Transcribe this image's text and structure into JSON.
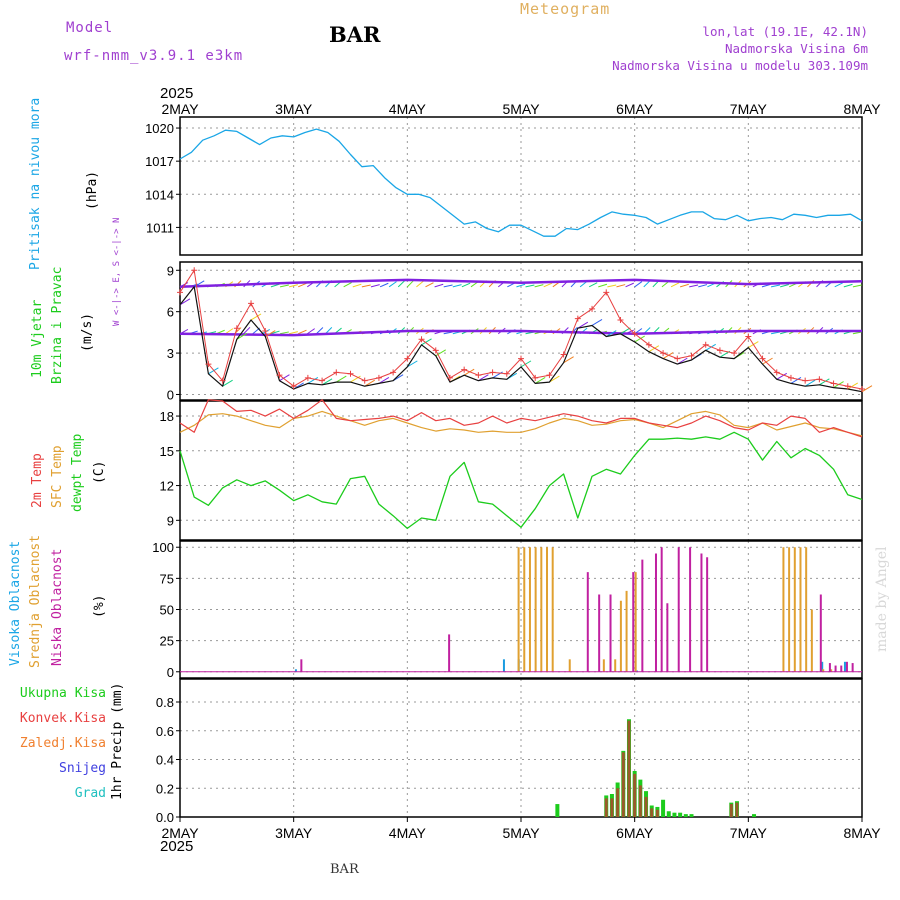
{
  "header": {
    "model_label": "Model",
    "model_name": "wrf-nmm_v3.9.1  e3km",
    "station": "BAR",
    "app_title": "Meteogram",
    "coords": "lon,lat (19.1E, 42.1N)",
    "elevation": "Nadmorska Visina 6m",
    "model_elevation": "Nadmorska Visina u modelu 303.109m",
    "watermark": "made by Angel",
    "footer_station": "BAR"
  },
  "colors": {
    "pressure": "#1aa6e6",
    "wind_speed": "#111111",
    "gust": "#e84040",
    "temp2m": "#e84040",
    "sfc_temp": "#e0a030",
    "dewpt": "#1ccc1c",
    "high_cloud": "#1a9ce0",
    "mid_cloud": "#e0a030",
    "low_cloud": "#c020a0",
    "total_precip": "#1ccc1c",
    "conv_precip": "#e84040"
  },
  "chart_data": [
    {
      "type": "line",
      "id": "pressure",
      "ylabel_parts": [
        "Pritisak na nivou mora",
        "(hPa)"
      ],
      "ylim": [
        1008.5,
        1021
      ],
      "yticks": [
        1011,
        1014,
        1017,
        1020
      ],
      "x_unit": "days since 2MAY 00UTC",
      "series": [
        {
          "name": "Pritisak na nivou mora",
          "x": [
            0,
            0.1,
            0.2,
            0.3,
            0.4,
            0.5,
            0.6,
            0.7,
            0.8,
            0.9,
            1.0,
            1.1,
            1.2,
            1.3,
            1.4,
            1.5,
            1.6,
            1.7,
            1.8,
            1.9,
            2.0,
            2.1,
            2.2,
            2.3,
            2.4,
            2.5,
            2.6,
            2.7,
            2.8,
            2.9,
            3.0,
            3.1,
            3.2,
            3.3,
            3.4,
            3.5,
            3.6,
            3.7,
            3.8,
            3.9,
            4.0,
            4.1,
            4.2,
            4.3,
            4.4,
            4.5,
            4.6,
            4.7,
            4.8,
            4.9,
            5.0,
            5.1,
            5.2,
            5.3,
            5.4,
            5.5,
            5.6,
            5.7,
            5.8,
            5.9,
            6.0
          ],
          "values": [
            1017.2,
            1017.8,
            1018.9,
            1019.3,
            1019.8,
            1019.7,
            1019.1,
            1018.5,
            1019.1,
            1019.3,
            1019.2,
            1019.6,
            1019.9,
            1019.6,
            1018.8,
            1017.6,
            1016.5,
            1016.6,
            1015.5,
            1014.6,
            1014.0,
            1014.0,
            1013.7,
            1012.9,
            1012.1,
            1011.3,
            1011.5,
            1010.9,
            1010.6,
            1011.2,
            1011.2,
            1010.7,
            1010.2,
            1010.2,
            1010.9,
            1010.8,
            1011.3,
            1011.9,
            1012.4,
            1012.2,
            1012.1,
            1011.9,
            1011.3,
            1011.7,
            1012.1,
            1012.4,
            1012.4,
            1011.8,
            1011.7,
            1012.1,
            1011.6,
            1011.8,
            1011.9,
            1011.7,
            1012.2,
            1012.1,
            1011.9,
            1012.1,
            1012.1,
            1012.2,
            1011.6
          ]
        }
      ]
    },
    {
      "type": "line",
      "id": "wind",
      "ylabel_parts": [
        "10m Vjetar",
        "Brzina i Pravac",
        "(m/s)"
      ],
      "legend_compass": "W <-|-> E, S <-|-> N",
      "ylim": [
        -0.4,
        9.6
      ],
      "yticks": [
        0,
        3,
        6,
        9
      ],
      "series": [
        {
          "name": "wind speed",
          "x": [
            0,
            0.125,
            0.25,
            0.375,
            0.5,
            0.625,
            0.75,
            0.875,
            1.0,
            1.125,
            1.25,
            1.375,
            1.5,
            1.625,
            1.75,
            1.875,
            2.0,
            2.125,
            2.25,
            2.375,
            2.5,
            2.625,
            2.75,
            2.875,
            3.0,
            3.125,
            3.25,
            3.375,
            3.5,
            3.625,
            3.75,
            3.875,
            4.0,
            4.125,
            4.25,
            4.375,
            4.5,
            4.625,
            4.75,
            4.875,
            5.0,
            5.125,
            5.25,
            5.375,
            5.5,
            5.625,
            5.75,
            5.875,
            6.0
          ],
          "values": [
            6.5,
            7.8,
            1.5,
            0.6,
            4.0,
            5.4,
            4.2,
            1.0,
            0.4,
            0.8,
            0.7,
            0.9,
            0.9,
            0.6,
            0.8,
            1.0,
            2.0,
            3.6,
            2.8,
            0.9,
            1.4,
            1.0,
            1.2,
            1.1,
            2.0,
            0.8,
            0.9,
            2.3,
            4.8,
            5.0,
            4.2,
            4.4,
            3.8,
            3.1,
            2.6,
            2.2,
            2.5,
            3.2,
            2.7,
            2.6,
            3.4,
            2.2,
            1.1,
            0.8,
            0.6,
            0.7,
            0.5,
            0.4,
            0.2
          ]
        },
        {
          "name": "gust",
          "x": [
            0,
            0.125,
            0.25,
            0.375,
            0.5,
            0.625,
            0.75,
            0.875,
            1.0,
            1.125,
            1.25,
            1.375,
            1.5,
            1.625,
            1.75,
            1.875,
            2.0,
            2.125,
            2.25,
            2.375,
            2.5,
            2.625,
            2.75,
            2.875,
            3.0,
            3.125,
            3.25,
            3.375,
            3.5,
            3.625,
            3.75,
            3.875,
            4.0,
            4.125,
            4.25,
            4.375,
            4.5,
            4.625,
            4.75,
            4.875,
            5.0,
            5.125,
            5.25,
            5.375,
            5.5,
            5.625,
            5.75,
            5.875,
            6.0
          ],
          "values": [
            7.4,
            9.0,
            2.2,
            1.0,
            4.8,
            6.6,
            4.6,
            1.4,
            0.6,
            1.2,
            1.0,
            1.6,
            1.5,
            1.0,
            1.2,
            1.6,
            2.6,
            4.0,
            3.2,
            1.2,
            1.8,
            1.4,
            1.6,
            1.5,
            2.6,
            1.2,
            1.4,
            2.9,
            5.5,
            6.2,
            7.4,
            5.4,
            4.4,
            3.6,
            3.0,
            2.6,
            2.8,
            3.6,
            3.2,
            3.0,
            4.2,
            2.6,
            1.6,
            1.2,
            1.0,
            1.1,
            0.8,
            0.6,
            0.4
          ]
        },
        {
          "name": "upper wind level 1",
          "x": [
            0,
            1,
            2,
            3,
            4,
            5,
            6
          ],
          "values": [
            4.4,
            4.3,
            4.6,
            4.6,
            4.4,
            4.6,
            4.6
          ]
        },
        {
          "name": "upper wind level 2",
          "x": [
            0,
            1,
            2,
            3,
            4,
            5,
            6
          ],
          "values": [
            7.8,
            8.1,
            8.3,
            8.1,
            8.3,
            8.0,
            8.2
          ]
        }
      ]
    },
    {
      "type": "line",
      "id": "temperature",
      "ylabel_parts": [
        "2m Temp",
        "SFC Temp",
        "dewpt Temp",
        "(C)"
      ],
      "ylim": [
        7.3,
        19.3
      ],
      "yticks": [
        9,
        12,
        15,
        18
      ],
      "series": [
        {
          "name": "2m Temp",
          "x": [
            0,
            0.125,
            0.25,
            0.375,
            0.5,
            0.625,
            0.75,
            0.875,
            1.0,
            1.125,
            1.25,
            1.375,
            1.5,
            1.625,
            1.75,
            1.875,
            2.0,
            2.125,
            2.25,
            2.375,
            2.5,
            2.625,
            2.75,
            2.875,
            3.0,
            3.125,
            3.25,
            3.375,
            3.5,
            3.625,
            3.75,
            3.875,
            4.0,
            4.125,
            4.25,
            4.375,
            4.5,
            4.625,
            4.75,
            4.875,
            5.0,
            5.125,
            5.25,
            5.375,
            5.5,
            5.625,
            5.75,
            5.875,
            6.0
          ],
          "values": [
            17.4,
            16.6,
            19.4,
            19.3,
            18.4,
            18.5,
            18.0,
            18.6,
            17.8,
            18.5,
            19.4,
            17.8,
            17.6,
            17.7,
            17.8,
            18.0,
            17.6,
            18.3,
            17.6,
            17.8,
            17.2,
            17.4,
            18.0,
            17.4,
            17.8,
            17.6,
            17.9,
            18.2,
            18.0,
            17.6,
            17.4,
            17.8,
            17.8,
            17.4,
            17.2,
            17.0,
            17.4,
            18.0,
            17.6,
            17.0,
            16.8,
            17.4,
            17.2,
            18.0,
            17.8,
            16.6,
            17.0,
            16.6,
            16.2
          ]
        },
        {
          "name": "SFC Temp",
          "x": [
            0,
            0.125,
            0.25,
            0.375,
            0.5,
            0.625,
            0.75,
            0.875,
            1.0,
            1.125,
            1.25,
            1.375,
            1.5,
            1.625,
            1.75,
            1.875,
            2.0,
            2.125,
            2.25,
            2.375,
            2.5,
            2.625,
            2.75,
            2.875,
            3.0,
            3.125,
            3.25,
            3.375,
            3.5,
            3.625,
            3.75,
            3.875,
            4.0,
            4.125,
            4.25,
            4.375,
            4.5,
            4.625,
            4.75,
            4.875,
            5.0,
            5.125,
            5.25,
            5.375,
            5.5,
            5.625,
            5.75,
            5.875,
            6.0
          ],
          "values": [
            16.6,
            17.2,
            18.1,
            18.2,
            18.0,
            17.6,
            17.2,
            17.0,
            17.8,
            18.0,
            18.4,
            18.0,
            17.6,
            17.2,
            17.6,
            17.8,
            17.4,
            17.0,
            16.7,
            16.9,
            16.8,
            16.6,
            16.7,
            16.6,
            16.6,
            16.9,
            17.4,
            17.8,
            17.6,
            17.2,
            17.3,
            17.6,
            17.7,
            17.4,
            17.0,
            17.6,
            18.2,
            18.4,
            18.1,
            17.2,
            17.0,
            17.4,
            16.8,
            17.1,
            17.4,
            17.0,
            16.9,
            16.6,
            16.3
          ]
        },
        {
          "name": "dewpt Temp",
          "x": [
            0,
            0.125,
            0.25,
            0.375,
            0.5,
            0.625,
            0.75,
            0.875,
            1.0,
            1.125,
            1.25,
            1.375,
            1.5,
            1.625,
            1.75,
            1.875,
            2.0,
            2.125,
            2.25,
            2.375,
            2.5,
            2.625,
            2.75,
            2.875,
            3.0,
            3.125,
            3.25,
            3.375,
            3.5,
            3.625,
            3.75,
            3.875,
            4.0,
            4.125,
            4.25,
            4.375,
            4.5,
            4.625,
            4.75,
            4.875,
            5.0,
            5.125,
            5.25,
            5.375,
            5.5,
            5.625,
            5.75,
            5.875,
            6.0
          ],
          "values": [
            15.0,
            11.0,
            10.3,
            11.8,
            12.5,
            12.0,
            12.4,
            11.6,
            10.7,
            11.2,
            10.6,
            10.4,
            12.6,
            12.8,
            10.4,
            9.4,
            8.3,
            9.2,
            9.0,
            12.8,
            14.0,
            10.6,
            10.4,
            9.4,
            8.4,
            10.0,
            12.0,
            13.0,
            9.2,
            12.8,
            13.4,
            13.0,
            14.6,
            16.0,
            16.0,
            16.1,
            16.0,
            16.2,
            16.0,
            16.6,
            16.0,
            14.2,
            15.8,
            14.4,
            15.2,
            14.6,
            13.4,
            11.2,
            10.8
          ]
        }
      ]
    },
    {
      "type": "bar",
      "id": "clouds",
      "ylabel_parts": [
        "Visoka Oblacnost",
        "Srednja Oblacnost",
        "Niska Oblacnost",
        "(%)"
      ],
      "ylim": [
        -5,
        105
      ],
      "yticks": [
        0,
        25,
        50,
        75,
        100
      ],
      "series": [
        {
          "name": "Visoka Oblacnost",
          "x": [
            1.02,
            2.85,
            2.98,
            4.02,
            5.65,
            5.85
          ],
          "values": [
            2,
            10,
            10,
            1,
            8,
            8
          ]
        },
        {
          "name": "Srednja Oblacnost",
          "x": [
            2.97,
            3.02,
            3.07,
            3.12,
            3.17,
            3.22,
            3.27,
            3.42,
            3.72,
            3.82,
            3.87,
            3.92,
            4.0,
            5.3,
            5.35,
            5.4,
            5.45,
            5.5,
            5.55,
            5.65,
            5.72
          ],
          "values": [
            100,
            100,
            100,
            100,
            100,
            100,
            100,
            10,
            10,
            10,
            57,
            65,
            80,
            100,
            100,
            100,
            100,
            100,
            50,
            2,
            2
          ]
        },
        {
          "name": "Niska Oblacnost",
          "x": [
            1.05,
            2.35,
            3.57,
            3.67,
            3.77,
            3.97,
            4.05,
            4.17,
            4.22,
            4.27,
            4.37,
            4.47,
            4.57,
            4.62,
            5.62,
            5.7,
            5.75,
            5.8,
            5.85,
            5.9
          ],
          "values": [
            10,
            30,
            80,
            62,
            62,
            80,
            90,
            95,
            100,
            55,
            100,
            100,
            95,
            92,
            62,
            7,
            5,
            5,
            8,
            7
          ]
        }
      ]
    },
    {
      "type": "bar",
      "id": "precip",
      "ylabel_parts": [
        "Ukupna Kisa",
        "Konvek.Kisa",
        "Zaledj.Kisa",
        "Snijeg",
        "Grad",
        "1hr Precip (mm)"
      ],
      "ylim": [
        0,
        0.96
      ],
      "yticks": [
        0.0,
        0.2,
        0.4,
        0.6,
        0.8
      ],
      "series": [
        {
          "name": "Ukupna Kisa",
          "x": [
            3.32,
            3.75,
            3.8,
            3.85,
            3.9,
            3.95,
            4.0,
            4.05,
            4.1,
            4.15,
            4.2,
            4.25,
            4.3,
            4.35,
            4.4,
            4.45,
            4.5,
            4.85,
            4.9,
            5.05
          ],
          "values": [
            0.09,
            0.15,
            0.16,
            0.24,
            0.46,
            0.68,
            0.32,
            0.26,
            0.18,
            0.08,
            0.07,
            0.12,
            0.04,
            0.03,
            0.03,
            0.02,
            0.02,
            0.1,
            0.11,
            0.02
          ]
        },
        {
          "name": "Konvek.Kisa",
          "x": [
            3.75,
            3.8,
            3.85,
            3.9,
            3.95,
            4.0,
            4.05,
            4.1,
            4.15,
            4.2,
            4.85,
            4.9
          ],
          "values": [
            0.13,
            0.13,
            0.2,
            0.45,
            0.67,
            0.3,
            0.22,
            0.14,
            0.06,
            0.05,
            0.09,
            0.1
          ]
        }
      ]
    }
  ],
  "x_axis": {
    "year": "2025",
    "tick_labels": [
      "2MAY",
      "3MAY",
      "4MAY",
      "5MAY",
      "6MAY",
      "7MAY",
      "8MAY"
    ]
  }
}
